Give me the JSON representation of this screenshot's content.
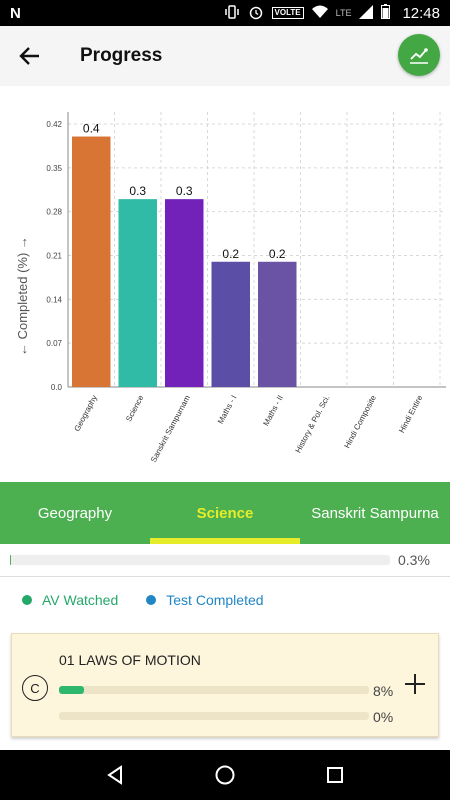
{
  "status_bar": {
    "time": "12:48",
    "volte": "VOLTE",
    "network": "LTE"
  },
  "app_bar": {
    "title": "Progress"
  },
  "chart_data": {
    "type": "bar",
    "ylabel": "← Completed (%) →",
    "ylim": [
      0,
      0.42
    ],
    "yticks": [
      "0.0",
      "0.07",
      "0.14",
      "0.21",
      "0.28",
      "0.35",
      "0.42"
    ],
    "categories": [
      "Geography",
      "Science",
      "Sanskrit Sampurnam",
      "Maths - I",
      "Maths - II",
      "History & Pol. Sci.",
      "Hindi Composite",
      "Hindi Entire"
    ],
    "values": [
      0.4,
      0.3,
      0.3,
      0.2,
      0.2,
      0,
      0,
      0
    ],
    "data_labels": [
      "0.4",
      "0.3",
      "0.3",
      "0.2",
      "0.2",
      "",
      "",
      ""
    ],
    "colors": [
      "#d87434",
      "#2fbba6",
      "#7222b8",
      "#5a4ea6",
      "#6a52a4",
      "#888888",
      "#888888",
      "#888888"
    ],
    "grid": true
  },
  "tabs": [
    {
      "label": "Geography",
      "active": false
    },
    {
      "label": "Science",
      "active": true
    },
    {
      "label": "Sanskrit Sampurna",
      "active": false
    }
  ],
  "overall": {
    "percent_text": "0.3%",
    "fraction": 0.003
  },
  "legend": {
    "av_watched": "AV Watched",
    "test_completed": "Test Completed",
    "av_color": "#24a86a",
    "test_color": "#2186c4"
  },
  "chapter": {
    "badge": "C",
    "title": "01 LAWS OF MOTION",
    "av_percent_text": "8%",
    "av_fraction": 0.08,
    "test_percent_text": "0%",
    "test_fraction": 0.0
  }
}
